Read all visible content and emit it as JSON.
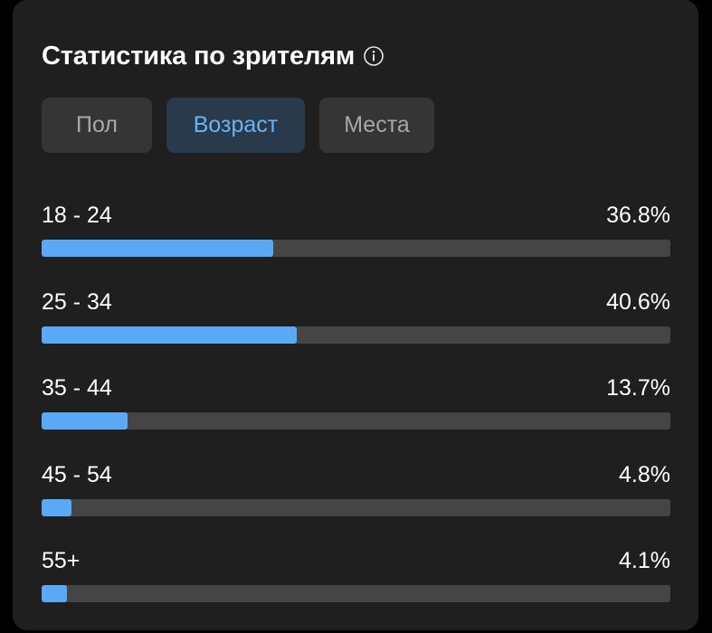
{
  "header": {
    "title": "Статистика по зрителям",
    "info_icon": "info-icon"
  },
  "tabs": [
    {
      "label": "Пол",
      "active": false
    },
    {
      "label": "Возраст",
      "active": true
    },
    {
      "label": "Места",
      "active": false
    }
  ],
  "age_rows": [
    {
      "label": "18 - 24",
      "value": "36.8%",
      "bar_fraction": 0.368
    },
    {
      "label": "25 - 34",
      "value": "40.6%",
      "bar_fraction": 0.406
    },
    {
      "label": "35 - 44",
      "value": "13.7%",
      "bar_fraction": 0.137
    },
    {
      "label": "45 - 54",
      "value": "4.8%",
      "bar_fraction": 0.048
    },
    {
      "label": "55+",
      "value": "4.1%",
      "bar_fraction": 0.041
    }
  ],
  "colors": {
    "background": "#1f1f1f",
    "accent": "#5aa9f5",
    "active_tab_text": "#6ab3f3",
    "track": "#454545"
  }
}
